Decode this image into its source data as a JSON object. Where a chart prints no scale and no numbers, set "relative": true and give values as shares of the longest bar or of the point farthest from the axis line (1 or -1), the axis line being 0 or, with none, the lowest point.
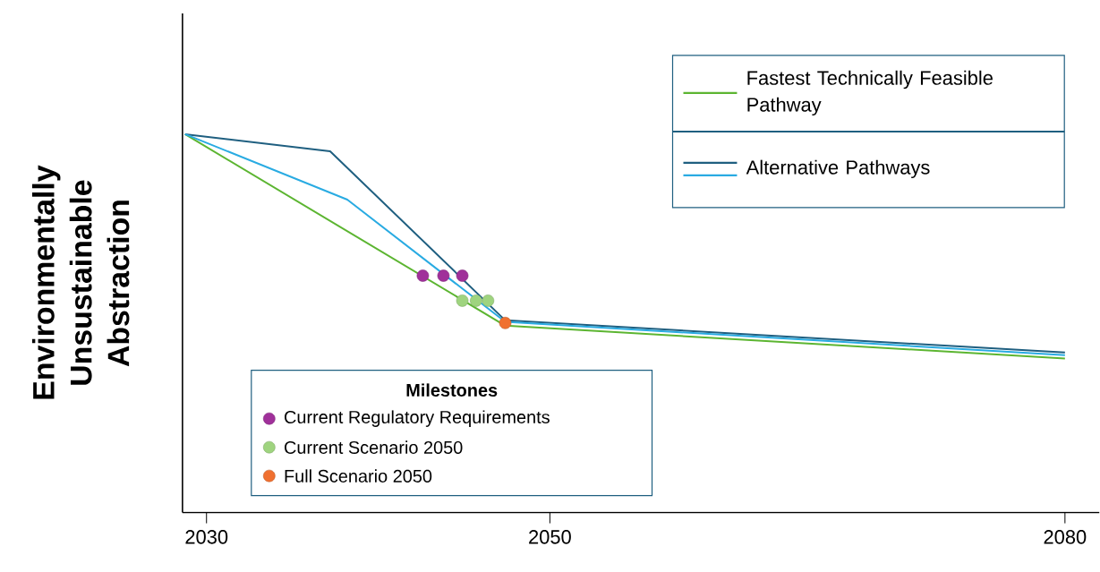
{
  "chart_data": {
    "type": "line",
    "ylabel": "Environmentally Unsustainable Abstraction",
    "relative": true,
    "xlim": [
      2028.6,
      2082
    ],
    "xticks": [
      2030,
      2050,
      2080
    ],
    "legend": "top right",
    "legend_title": "Milestones",
    "series": [
      {
        "name": "Fastest Technically Feasible Pathway",
        "color": "#5cb531",
        "x": [
          2028.75,
          2047.4,
          2080
        ],
        "values": [
          1,
          0.494,
          0.407
        ]
      },
      {
        "name": "Alternative Pathways",
        "color": "#1f5f80",
        "x": [
          2028.75,
          2037.2,
          2047.4,
          2080
        ],
        "values": [
          1,
          0.955,
          0.508,
          0.423
        ]
      },
      {
        "color": "#29abe2",
        "x": [
          2028.75,
          2038.2,
          2047.4,
          2080
        ],
        "values": [
          1,
          0.827,
          0.504,
          0.416
        ]
      },
      {
        "type": "scatter",
        "name": "Current Regulatory Requirements",
        "color": "#a0309a",
        "marker": "circle",
        "x": [
          2042.6,
          2043.8,
          2044.9
        ],
        "values": [
          0.626,
          0.626,
          0.626
        ]
      },
      {
        "type": "scatter",
        "name": "Current Scenario 2050",
        "color": "#9fd47f",
        "marker": "circle",
        "x": [
          2044.9,
          2045.7,
          2046.4
        ],
        "values": [
          0.56,
          0.56,
          0.56
        ]
      },
      {
        "type": "scatter",
        "name": "Full Scenario 2050",
        "color": "#f07030",
        "marker": "circle",
        "x": [
          2047.4
        ],
        "values": [
          0.501
        ]
      }
    ]
  }
}
